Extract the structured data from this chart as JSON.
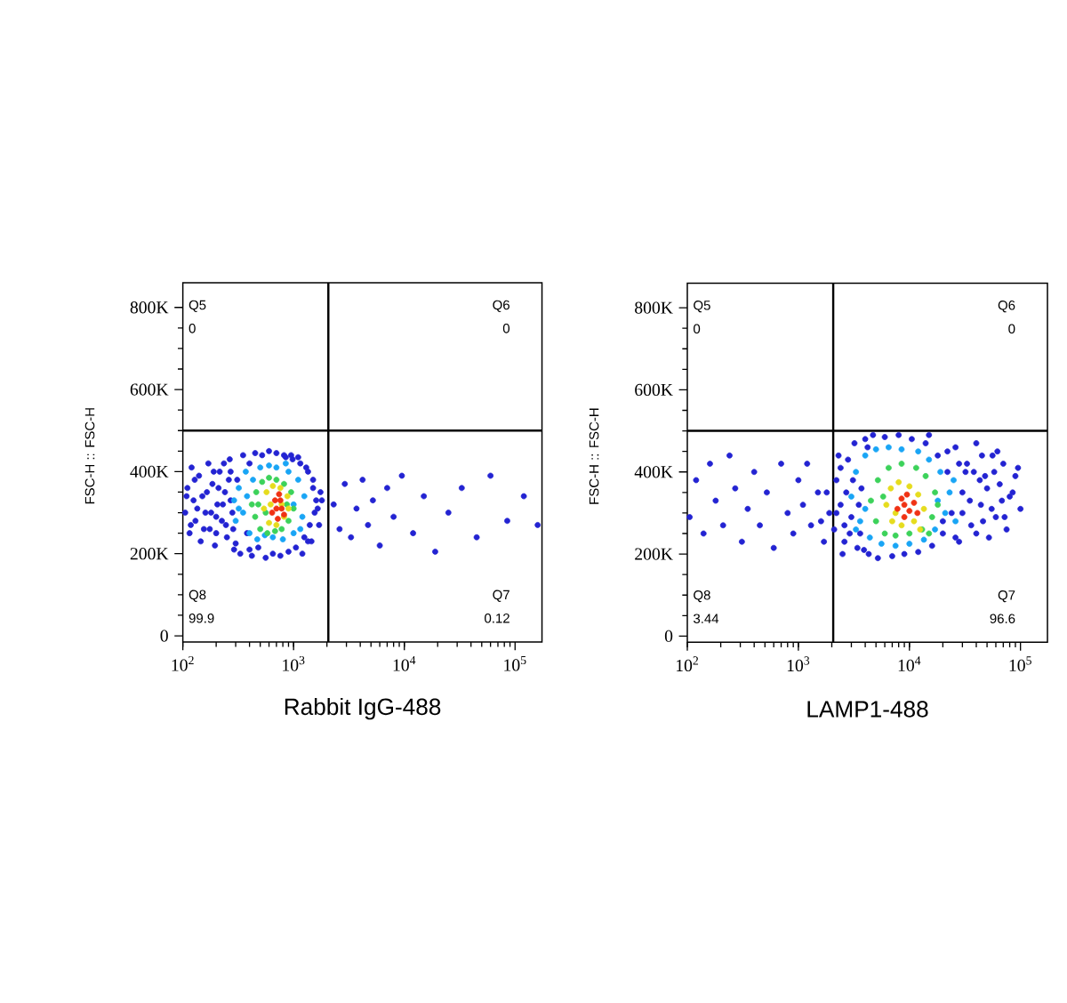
{
  "chart_data": [
    {
      "type": "scatter",
      "xlabel": "Rabbit IgG-488",
      "ylabel": "FSC-H :: FSC-H",
      "log": "x",
      "marker": "circle",
      "xlim": [
        100,
        175000
      ],
      "ylim": [
        -15000,
        860000
      ],
      "xticks": [
        {
          "value": 100,
          "label": "10$^{2}$"
        },
        {
          "value": 1000,
          "label": "10$^{3}$"
        },
        {
          "value": 10000,
          "label": "10$^{4}$"
        },
        {
          "value": 100000,
          "label": "10$^{5}$"
        }
      ],
      "yticks": [
        0,
        {
          "value": 200000,
          "label": "200K"
        },
        {
          "value": 400000,
          "label": "400K"
        },
        {
          "value": 600000,
          "label": "600K"
        },
        {
          "value": 800000,
          "label": "800K"
        }
      ],
      "ref_lines": [
        {
          "axis": "x",
          "value": 2060,
          "color": "#000000"
        },
        {
          "axis": "y",
          "value": 500000,
          "color": "#000000"
        }
      ],
      "annotations": [
        "Q5",
        "0",
        "Q6",
        "0",
        "Q8",
        "99.9",
        "Q7",
        "0.12"
      ],
      "series": [
        {
          "color": "#2323d2",
          "x": [
            105,
            110,
            115,
            120,
            125,
            130,
            140,
            145,
            150,
            160,
            170,
            175,
            185,
            195,
            205,
            215,
            225,
            240,
            250,
            265,
            280,
            290,
            310,
            330,
            350,
            380,
            400,
            420,
            450,
            480,
            520,
            560,
            600,
            650,
            700,
            760,
            820,
            900,
            980,
            1050,
            1150,
            1250,
            1350,
            1400,
            1500,
            1550,
            1600,
            1450,
            1300,
            2300,
            2600,
            2900,
            3300,
            3700,
            4200,
            4700,
            5200,
            6000,
            7000,
            8000,
            9500,
            12000,
            15000,
            19000,
            25000,
            33000,
            45000,
            60000,
            85000,
            120000,
            160000,
            108,
            118,
            128,
            135,
            155,
            165,
            180,
            190,
            200,
            210,
            230,
            245,
            260,
            270,
            285,
            1200,
            1350,
            1500,
            1650,
            1700,
            1750,
            1100,
            950,
            850,
            400,
            300,
            270,
            235,
            200,
            1800
          ],
          "values": [
            300000,
            360000,
            250000,
            410000,
            330000,
            280000,
            390000,
            230000,
            340000,
            300000,
            420000,
            260000,
            370000,
            220000,
            320000,
            400000,
            280000,
            350000,
            240000,
            430000,
            300000,
            210000,
            380000,
            200000,
            440000,
            250000,
            420000,
            195000,
            445000,
            215000,
            440000,
            190000,
            450000,
            200000,
            445000,
            195000,
            440000,
            205000,
            430000,
            215000,
            420000,
            240000,
            400000,
            270000,
            360000,
            300000,
            330000,
            230000,
            410000,
            320000,
            260000,
            370000,
            240000,
            310000,
            380000,
            270000,
            330000,
            220000,
            360000,
            290000,
            390000,
            250000,
            340000,
            205000,
            300000,
            360000,
            240000,
            390000,
            280000,
            340000,
            270000,
            340000,
            270000,
            380000,
            310000,
            260000,
            350000,
            300000,
            400000,
            250000,
            360000,
            320000,
            270000,
            380000,
            330000,
            260000,
            200000,
            230000,
            380000,
            310000,
            270000,
            350000,
            435000,
            440000,
            435000,
            210000,
            225000,
            400000,
            420000,
            290000,
            330000
          ]
        },
        {
          "color": "#19a5f5",
          "x": [
            290,
            300,
            320,
            350,
            370,
            400,
            430,
            470,
            500,
            550,
            600,
            650,
            700,
            800,
            900,
            1000,
            1100,
            1200,
            1250,
            380,
            1000,
            320,
            1150,
            850
          ],
          "values": [
            330000,
            280000,
            360000,
            300000,
            400000,
            250000,
            380000,
            235000,
            410000,
            245000,
            415000,
            240000,
            410000,
            235000,
            400000,
            250000,
            380000,
            290000,
            340000,
            340000,
            320000,
            310000,
            260000,
            420000
          ]
        },
        {
          "color": "#3cd25a",
          "x": [
            420,
            450,
            460,
            500,
            520,
            580,
            600,
            680,
            700,
            780,
            820,
            900,
            950,
            1000,
            480,
            870,
            560
          ],
          "values": [
            320000,
            290000,
            350000,
            260000,
            375000,
            250000,
            385000,
            255000,
            380000,
            260000,
            370000,
            280000,
            350000,
            310000,
            320000,
            320000,
            300000
          ]
        },
        {
          "color": "#e6dc1e",
          "x": [
            540,
            570,
            600,
            650,
            700,
            760,
            820,
            880,
            900,
            620,
            780
          ],
          "values": [
            310000,
            350000,
            275000,
            365000,
            270000,
            360000,
            290000,
            340000,
            310000,
            320000,
            320000
          ]
        },
        {
          "color": "#f03214",
          "x": [
            640,
            680,
            720,
            740,
            780,
            820,
            700,
            760
          ],
          "values": [
            300000,
            330000,
            285000,
            345000,
            310000,
            295000,
            310000,
            330000
          ]
        }
      ]
    },
    {
      "type": "scatter",
      "xlabel": "LAMP1-488",
      "ylabel": "FSC-H :: FSC-H",
      "log": "x",
      "marker": "circle",
      "xlim": [
        100,
        175000
      ],
      "ylim": [
        -15000,
        860000
      ],
      "xticks": [
        {
          "value": 100,
          "label": "10$^{2}$"
        },
        {
          "value": 1000,
          "label": "10$^{3}$"
        },
        {
          "value": 10000,
          "label": "10$^{4}$"
        },
        {
          "value": 100000,
          "label": "10$^{5}$"
        }
      ],
      "yticks": [
        0,
        {
          "value": 200000,
          "label": "200K"
        },
        {
          "value": 400000,
          "label": "400K"
        },
        {
          "value": 600000,
          "label": "600K"
        },
        {
          "value": 800000,
          "label": "800K"
        }
      ],
      "ref_lines": [
        {
          "axis": "x",
          "value": 2060,
          "color": "#000000"
        },
        {
          "axis": "y",
          "value": 500000,
          "color": "#000000"
        }
      ],
      "annotations": [
        "Q5",
        "0",
        "Q6",
        "0",
        "Q8",
        "3.44",
        "Q7",
        "96.6"
      ],
      "series": [
        {
          "color": "#2323d2",
          "x": [
            105,
            120,
            140,
            160,
            180,
            210,
            240,
            270,
            310,
            350,
            400,
            450,
            520,
            600,
            700,
            800,
            900,
            1000,
            1100,
            1300,
            1500,
            1700,
            1900,
            1200,
            2100,
            2200,
            2400,
            2600,
            2800,
            3000,
            3200,
            3400,
            3700,
            4000,
            4300,
            4700,
            5200,
            6000,
            7000,
            8000,
            9000,
            10500,
            12000,
            14000,
            16000,
            18000,
            20000,
            22000,
            24000,
            26000,
            28000,
            30000,
            33000,
            36000,
            40000,
            44000,
            48000,
            52000,
            56000,
            60000,
            65000,
            70000,
            75000,
            80000,
            90000,
            100000,
            46000,
            38000,
            2500,
            3600,
            15000,
            2200,
            2400,
            2700,
            2900,
            3100,
            3500,
            30000,
            32000,
            35000,
            40000,
            45000,
            50000,
            55000,
            62000,
            68000,
            72000,
            28000,
            26000,
            22000,
            20000,
            2300,
            2600,
            3900,
            4200,
            43000,
            58000,
            85000,
            95000,
            1800,
            1600
          ],
          "values": [
            290000,
            380000,
            250000,
            420000,
            330000,
            270000,
            440000,
            360000,
            230000,
            310000,
            400000,
            270000,
            350000,
            215000,
            420000,
            300000,
            250000,
            380000,
            320000,
            270000,
            350000,
            230000,
            300000,
            420000,
            260000,
            380000,
            320000,
            230000,
            430000,
            290000,
            470000,
            215000,
            360000,
            480000,
            200000,
            490000,
            190000,
            485000,
            195000,
            490000,
            200000,
            480000,
            205000,
            470000,
            220000,
            440000,
            250000,
            400000,
            300000,
            460000,
            230000,
            350000,
            420000,
            270000,
            470000,
            320000,
            390000,
            240000,
            440000,
            290000,
            370000,
            420000,
            260000,
            340000,
            390000,
            310000,
            280000,
            400000,
            200000,
            250000,
            490000,
            300000,
            410000,
            350000,
            250000,
            380000,
            320000,
            300000,
            400000,
            330000,
            250000,
            440000,
            360000,
            310000,
            450000,
            330000,
            290000,
            420000,
            240000,
            450000,
            280000,
            440000,
            270000,
            210000,
            460000,
            380000,
            400000,
            350000,
            410000,
            350000,
            280000
          ]
        },
        {
          "color": "#19a5f5",
          "x": [
            3000,
            3300,
            3600,
            4000,
            4400,
            5000,
            5600,
            6500,
            7500,
            8500,
            10000,
            12000,
            13500,
            15000,
            17000,
            19000,
            21000,
            23000,
            25000,
            18000,
            4000,
            3300,
            26000
          ],
          "values": [
            340000,
            400000,
            280000,
            440000,
            240000,
            455000,
            225000,
            460000,
            220000,
            455000,
            225000,
            450000,
            235000,
            430000,
            260000,
            400000,
            300000,
            350000,
            380000,
            330000,
            310000,
            260000,
            280000
          ]
        },
        {
          "color": "#3cd25a",
          "x": [
            4500,
            5000,
            5200,
            6000,
            6500,
            7500,
            8500,
            10000,
            11500,
            13000,
            14000,
            16000,
            17000,
            18000,
            5800,
            15000
          ],
          "values": [
            330000,
            280000,
            380000,
            250000,
            410000,
            245000,
            420000,
            250000,
            410000,
            260000,
            390000,
            290000,
            350000,
            320000,
            340000,
            250000
          ]
        },
        {
          "color": "#e6dc1e",
          "x": [
            6200,
            6800,
            7000,
            8000,
            8500,
            10000,
            11000,
            12000,
            13500,
            7500,
            12500
          ],
          "values": [
            320000,
            360000,
            280000,
            375000,
            270000,
            365000,
            280000,
            345000,
            310000,
            300000,
            260000
          ]
        },
        {
          "color": "#f03214",
          "x": [
            7800,
            8500,
            9000,
            9500,
            10000,
            11000,
            11800,
            9000
          ],
          "values": [
            310000,
            335000,
            290000,
            345000,
            305000,
            325000,
            300000,
            320000
          ]
        }
      ]
    }
  ]
}
